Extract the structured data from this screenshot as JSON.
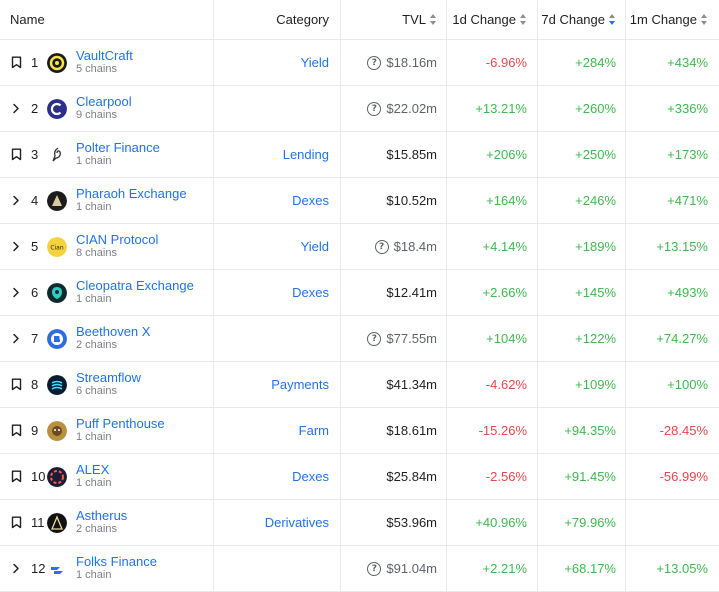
{
  "headers": {
    "name": "Name",
    "category": "Category",
    "tvl": "TVL",
    "d1": "1d Change",
    "d7": "7d Change",
    "m1": "1m Change"
  },
  "rows": [
    {
      "rank": "1",
      "control": "bookmark-icon",
      "name": "VaultCraft",
      "chains": "5 chains",
      "category": "Yield",
      "tvl": "$18.16m",
      "tvl_info": true,
      "d1": "-6.96%",
      "d7": "+284%",
      "m1": "+434%",
      "logo_color": "#1a1a1a"
    },
    {
      "rank": "2",
      "control": "chevron-right-icon",
      "name": "Clearpool",
      "chains": "9 chains",
      "category": "",
      "tvl": "$22.02m",
      "tvl_info": true,
      "d1": "+13.21%",
      "d7": "+260%",
      "m1": "+336%",
      "logo_color": "#2b2f8a"
    },
    {
      "rank": "3",
      "control": "bookmark-icon",
      "name": "Polter Finance",
      "chains": "1 chain",
      "category": "Lending",
      "tvl": "$15.85m",
      "tvl_info": false,
      "d1": "+206%",
      "d7": "+250%",
      "m1": "+173%",
      "logo_color": "#ffffff"
    },
    {
      "rank": "4",
      "control": "chevron-right-icon",
      "name": "Pharaoh Exchange",
      "chains": "1 chain",
      "category": "Dexes",
      "tvl": "$10.52m",
      "tvl_info": false,
      "d1": "+164%",
      "d7": "+246%",
      "m1": "+471%",
      "logo_color": "#1c1c1c"
    },
    {
      "rank": "5",
      "control": "chevron-right-icon",
      "name": "CIAN Protocol",
      "chains": "8 chains",
      "category": "Yield",
      "tvl": "$18.4m",
      "tvl_info": true,
      "d1": "+4.14%",
      "d7": "+189%",
      "m1": "+13.15%",
      "logo_color": "#f6d33c"
    },
    {
      "rank": "6",
      "control": "chevron-right-icon",
      "name": "Cleopatra Exchange",
      "chains": "1 chain",
      "category": "Dexes",
      "tvl": "$12.41m",
      "tvl_info": false,
      "d1": "+2.66%",
      "d7": "+145%",
      "m1": "+493%",
      "logo_color": "#0f2a2e"
    },
    {
      "rank": "7",
      "control": "chevron-right-icon",
      "name": "Beethoven X",
      "chains": "2 chains",
      "category": "",
      "tvl": "$77.55m",
      "tvl_info": true,
      "d1": "+104%",
      "d7": "+122%",
      "m1": "+74.27%",
      "logo_color": "#2f6ce0"
    },
    {
      "rank": "8",
      "control": "bookmark-icon",
      "name": "Streamflow",
      "chains": "6 chains",
      "category": "Payments",
      "tvl": "$41.34m",
      "tvl_info": false,
      "d1": "-4.62%",
      "d7": "+109%",
      "m1": "+100%",
      "logo_color": "#0b1a2e"
    },
    {
      "rank": "9",
      "control": "bookmark-icon",
      "name": "Puff Penthouse",
      "chains": "1 chain",
      "category": "Farm",
      "tvl": "$18.61m",
      "tvl_info": false,
      "d1": "-15.26%",
      "d7": "+94.35%",
      "m1": "-28.45%",
      "logo_color": "#b8903f"
    },
    {
      "rank": "10",
      "control": "bookmark-icon",
      "name": "ALEX",
      "chains": "1 chain",
      "category": "Dexes",
      "tvl": "$25.84m",
      "tvl_info": false,
      "d1": "-2.56%",
      "d7": "+91.45%",
      "m1": "-56.99%",
      "logo_color": "#1d1b3a"
    },
    {
      "rank": "11",
      "control": "bookmark-icon",
      "name": "Astherus",
      "chains": "2 chains",
      "category": "Derivatives",
      "tvl": "$53.96m",
      "tvl_info": false,
      "d1": "+40.96%",
      "d7": "+79.96%",
      "m1": "",
      "logo_color": "#111111"
    },
    {
      "rank": "12",
      "control": "chevron-right-icon",
      "name": "Folks Finance",
      "chains": "1 chain",
      "category": "",
      "tvl": "$91.04m",
      "tvl_info": true,
      "d1": "+2.21%",
      "d7": "+68.17%",
      "m1": "+13.05%",
      "logo_color": "#ffffff"
    }
  ],
  "colors": {
    "link": "#2172e5",
    "positive": "#3fb950",
    "negative": "#e5484d",
    "border": "#e8e9ec"
  }
}
